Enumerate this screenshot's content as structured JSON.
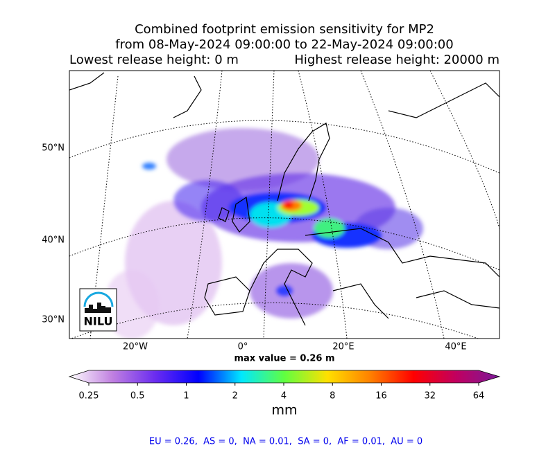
{
  "title": {
    "line1": "Combined footprint emission sensitivity for MP2",
    "line2": "from 08-May-2024 09:00:00 to 22-May-2024 09:00:00",
    "lowest": "Lowest release height: 0 m",
    "highest": "Highest release height: 20000 m"
  },
  "map": {
    "lat_labels": [
      "50°N",
      "40°N",
      "30°N"
    ],
    "lon_labels": [
      "20°W",
      "0°",
      "20°E",
      "40°E"
    ],
    "max_value": "max value = 0.26 m",
    "logo": "NILU"
  },
  "colorbar": {
    "ticks": [
      0.25,
      0.5,
      1,
      2,
      4,
      8,
      16,
      32,
      64
    ],
    "lim": [
      0.25,
      64
    ],
    "log": true,
    "label": "mm",
    "colors": [
      "#ffffff",
      "#c080e0",
      "#6a2cf0",
      "#0000ff",
      "#00e8ff",
      "#60ff40",
      "#ffe000",
      "#ff8000",
      "#ff0000",
      "#c00060",
      "#7a1a9a"
    ]
  },
  "footer": "EU = 0.26,  AS = 0,  NA = 0.01,  SA = 0,  AF = 0.01,  AU = 0"
}
